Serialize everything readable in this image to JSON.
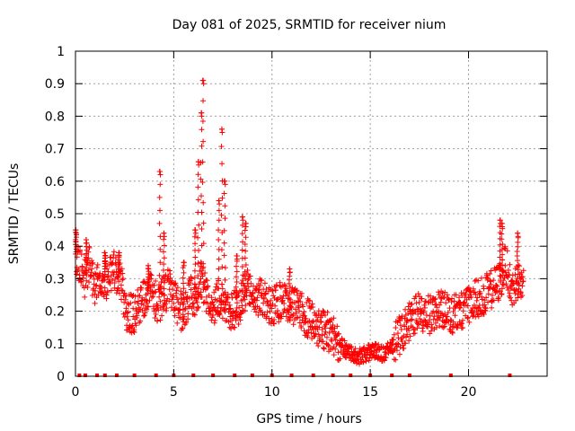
{
  "chart_data": {
    "type": "scatter",
    "title": "Day 081 of 2025, SRMTID for receiver nium",
    "xlabel": "GPS time / hours",
    "ylabel": "SRMTID / TECUs",
    "xlim": [
      0,
      24
    ],
    "ylim": [
      0,
      1
    ],
    "xticks": [
      "0",
      "5",
      "10",
      "15",
      "20"
    ],
    "xtick_values": [
      0,
      5,
      10,
      15,
      20
    ],
    "yticks": [
      "0",
      "0.1",
      "0.2",
      "0.3",
      "0.4",
      "0.5",
      "0.6",
      "0.7",
      "0.8",
      "0.9",
      "1"
    ],
    "ytick_values": [
      0,
      0.1,
      0.2,
      0.3,
      0.4,
      0.5,
      0.6,
      0.7,
      0.8,
      0.9,
      1
    ],
    "grid": true,
    "marker": "+",
    "color": "#ff0000",
    "series_name": "SRMTID",
    "profile": {
      "x": [
        0.0,
        0.3,
        0.5,
        0.7,
        1.0,
        1.3,
        1.6,
        1.9,
        2.3,
        2.6,
        3.0,
        3.4,
        3.8,
        4.2,
        4.5,
        4.8,
        5.2,
        5.5,
        5.8,
        6.1,
        6.4,
        6.7,
        7.0,
        7.3,
        7.6,
        8.0,
        8.4,
        8.8,
        9.2,
        9.6,
        10.0,
        10.4,
        10.8,
        11.2,
        11.6,
        12.0,
        12.4,
        12.8,
        13.2,
        13.6,
        14.0,
        14.4,
        14.8,
        15.2,
        15.6,
        16.0,
        16.4,
        16.8,
        17.2,
        17.6,
        18.0,
        18.4,
        18.8,
        19.2,
        19.6,
        20.0,
        20.4,
        20.8,
        21.2,
        21.6,
        21.9,
        22.2,
        22.5,
        22.8
      ],
      "y": [
        0.38,
        0.32,
        0.3,
        0.35,
        0.27,
        0.31,
        0.29,
        0.33,
        0.3,
        0.2,
        0.19,
        0.24,
        0.26,
        0.22,
        0.25,
        0.28,
        0.22,
        0.19,
        0.25,
        0.24,
        0.3,
        0.25,
        0.21,
        0.24,
        0.22,
        0.2,
        0.22,
        0.28,
        0.25,
        0.24,
        0.21,
        0.23,
        0.22,
        0.21,
        0.19,
        0.17,
        0.15,
        0.14,
        0.12,
        0.09,
        0.07,
        0.06,
        0.07,
        0.08,
        0.07,
        0.08,
        0.12,
        0.15,
        0.19,
        0.2,
        0.19,
        0.2,
        0.21,
        0.19,
        0.2,
        0.22,
        0.24,
        0.25,
        0.27,
        0.29,
        0.35,
        0.26,
        0.3,
        0.27
      ]
    },
    "spikes": [
      {
        "x": 0.02,
        "y": 0.45
      },
      {
        "x": 0.55,
        "y": 0.42
      },
      {
        "x": 1.5,
        "y": 0.38
      },
      {
        "x": 2.2,
        "y": 0.38
      },
      {
        "x": 3.7,
        "y": 0.34
      },
      {
        "x": 4.3,
        "y": 0.63
      },
      {
        "x": 4.5,
        "y": 0.44
      },
      {
        "x": 5.5,
        "y": 0.35
      },
      {
        "x": 6.1,
        "y": 0.45
      },
      {
        "x": 6.25,
        "y": 0.66
      },
      {
        "x": 6.4,
        "y": 0.81
      },
      {
        "x": 6.5,
        "y": 0.91
      },
      {
        "x": 7.3,
        "y": 0.54
      },
      {
        "x": 7.45,
        "y": 0.76
      },
      {
        "x": 7.6,
        "y": 0.6
      },
      {
        "x": 8.2,
        "y": 0.37
      },
      {
        "x": 8.5,
        "y": 0.49
      },
      {
        "x": 8.65,
        "y": 0.47
      },
      {
        "x": 10.9,
        "y": 0.33
      },
      {
        "x": 21.6,
        "y": 0.48
      },
      {
        "x": 21.7,
        "y": 0.47
      },
      {
        "x": 22.5,
        "y": 0.44
      }
    ],
    "baseline_points_x": [
      0.2,
      0.5,
      1.1,
      1.5,
      2.1,
      3.0,
      4.1,
      5.0,
      6.0,
      7.0,
      8.1,
      9.0,
      10.0,
      11.0,
      12.1,
      13.1,
      14.0,
      15.0,
      16.1,
      17.0,
      19.1,
      22.1
    ]
  }
}
